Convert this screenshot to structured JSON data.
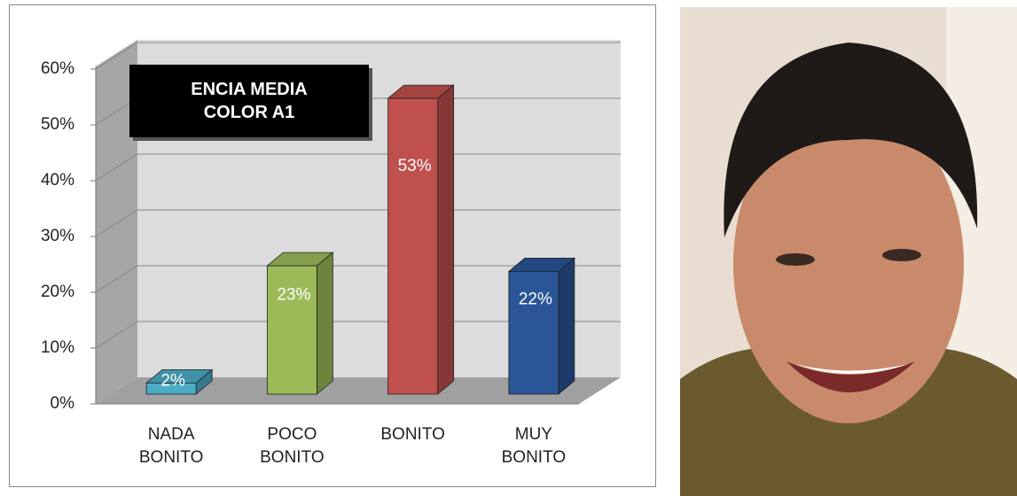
{
  "chart_data": {
    "type": "bar3d",
    "title": "ENCIA MEDIA\nCOLOR A1",
    "categories": [
      "NADA\nBONITO",
      "POCO\nBONITO",
      "BONITO",
      "MUY\nBONITO"
    ],
    "values": [
      2,
      23,
      53,
      22
    ],
    "value_labels": [
      "2%",
      "23%",
      "53%",
      "22%"
    ],
    "colors": [
      "#4bacc6",
      "#9bbb59",
      "#c0504d",
      "#2a5597"
    ],
    "ylim": [
      0,
      60
    ],
    "yticks": [
      {
        "value": 0,
        "label": "0%"
      },
      {
        "value": 10,
        "label": "10%"
      },
      {
        "value": 20,
        "label": "20%"
      },
      {
        "value": 30,
        "label": "30%"
      },
      {
        "value": 40,
        "label": "40%"
      },
      {
        "value": 50,
        "label": "50%"
      },
      {
        "value": 60,
        "label": "60%"
      }
    ],
    "grid": true
  }
}
